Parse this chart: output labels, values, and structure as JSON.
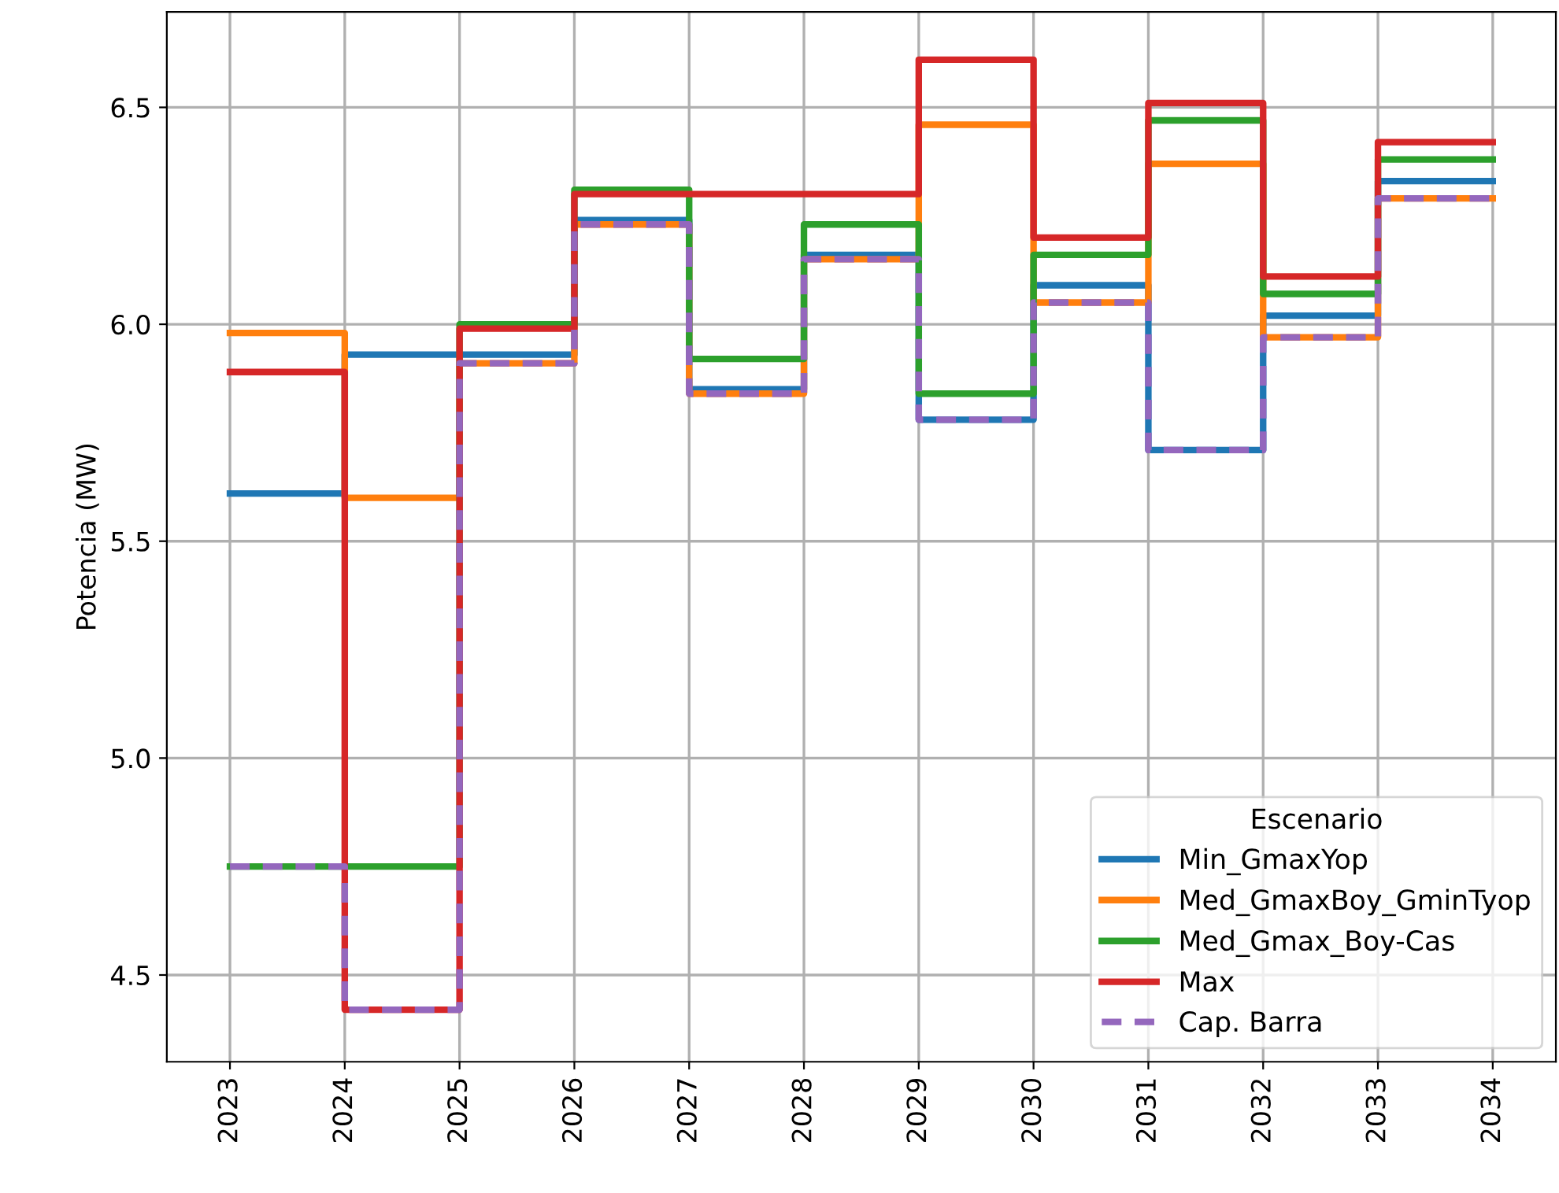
{
  "chart_data": {
    "type": "step",
    "ylabel": "Potencia (MW)",
    "legend_title": "Escenario",
    "categories": [
      "2023",
      "2024",
      "2025",
      "2026",
      "2027",
      "2028",
      "2029",
      "2030",
      "2031",
      "2032",
      "2033",
      "2034"
    ],
    "series": [
      {
        "name": "Min_GmaxYop",
        "color": "#1f77b4",
        "values": [
          5.61,
          5.93,
          5.93,
          6.24,
          5.85,
          6.16,
          5.78,
          6.09,
          5.71,
          6.02,
          6.33,
          6.33
        ]
      },
      {
        "name": "Med_GmaxBoy_GminTyop",
        "color": "#ff7f0e",
        "values": [
          5.98,
          5.6,
          5.91,
          6.23,
          5.84,
          6.15,
          6.46,
          6.05,
          6.37,
          5.97,
          6.29,
          6.29
        ]
      },
      {
        "name": "Med_Gmax_Boy-Cas",
        "color": "#2ca02c",
        "values": [
          4.75,
          4.75,
          6.0,
          6.31,
          5.92,
          6.23,
          5.84,
          6.16,
          6.47,
          6.07,
          6.38,
          6.38
        ]
      },
      {
        "name": "Max",
        "color": "#d62728",
        "values": [
          5.89,
          4.42,
          5.99,
          6.3,
          6.3,
          6.3,
          6.61,
          6.2,
          6.51,
          6.11,
          6.42,
          6.42
        ]
      },
      {
        "name": "Cap. Barra",
        "color": "#9467bd",
        "line_style": "dashed",
        "values": [
          4.75,
          4.42,
          5.91,
          6.23,
          5.84,
          6.15,
          5.78,
          6.05,
          5.71,
          5.97,
          6.29,
          6.29
        ]
      }
    ],
    "ylim": [
      4.3,
      6.72
    ],
    "yticks": [
      {
        "value": 4.5,
        "label": "4.5"
      },
      {
        "value": 5.0,
        "label": "5.0"
      },
      {
        "value": 5.5,
        "label": "5.5"
      },
      {
        "value": 6.0,
        "label": "6.0"
      },
      {
        "value": 6.5,
        "label": "6.5"
      }
    ],
    "grid": true,
    "legend": "lower right"
  }
}
